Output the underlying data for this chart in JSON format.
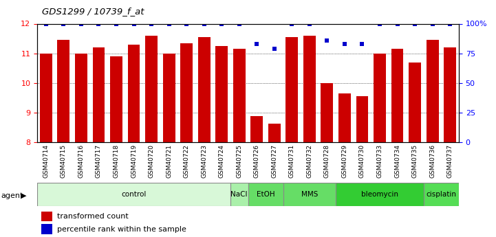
{
  "title": "GDS1299 / 10739_f_at",
  "samples": [
    "GSM40714",
    "GSM40715",
    "GSM40716",
    "GSM40717",
    "GSM40718",
    "GSM40719",
    "GSM40720",
    "GSM40721",
    "GSM40722",
    "GSM40723",
    "GSM40724",
    "GSM40725",
    "GSM40726",
    "GSM40727",
    "GSM40731",
    "GSM40732",
    "GSM40728",
    "GSM40729",
    "GSM40730",
    "GSM40733",
    "GSM40734",
    "GSM40735",
    "GSM40736",
    "GSM40737"
  ],
  "bar_values": [
    11.0,
    11.45,
    11.0,
    11.2,
    10.9,
    11.3,
    11.6,
    11.0,
    11.35,
    11.55,
    11.25,
    11.15,
    8.88,
    8.62,
    11.55,
    11.6,
    10.0,
    9.65,
    9.55,
    11.0,
    11.15,
    10.7,
    11.45,
    11.2
  ],
  "percentile_values": [
    100,
    100,
    100,
    100,
    100,
    100,
    100,
    100,
    100,
    100,
    100,
    100,
    83,
    79,
    100,
    100,
    86,
    83,
    83,
    100,
    100,
    100,
    100,
    100
  ],
  "ylim_left": [
    8,
    12
  ],
  "ylim_right": [
    0,
    100
  ],
  "yticks_left": [
    8,
    9,
    10,
    11,
    12
  ],
  "yticks_right": [
    0,
    25,
    50,
    75,
    100
  ],
  "bar_color": "#cc0000",
  "dot_color": "#0000cc",
  "bar_width": 0.7,
  "groups": [
    {
      "label": "control",
      "start": 0,
      "end": 11,
      "color": "#d8f8d8"
    },
    {
      "label": "NaCl",
      "start": 11,
      "end": 12,
      "color": "#aaf0aa"
    },
    {
      "label": "EtOH",
      "start": 12,
      "end": 14,
      "color": "#66dd66"
    },
    {
      "label": "MMS",
      "start": 14,
      "end": 17,
      "color": "#66dd66"
    },
    {
      "label": "bleomycin",
      "start": 17,
      "end": 22,
      "color": "#33cc33"
    },
    {
      "label": "cisplatin",
      "start": 22,
      "end": 24,
      "color": "#55dd55"
    }
  ],
  "figure_bg": "#ffffff"
}
